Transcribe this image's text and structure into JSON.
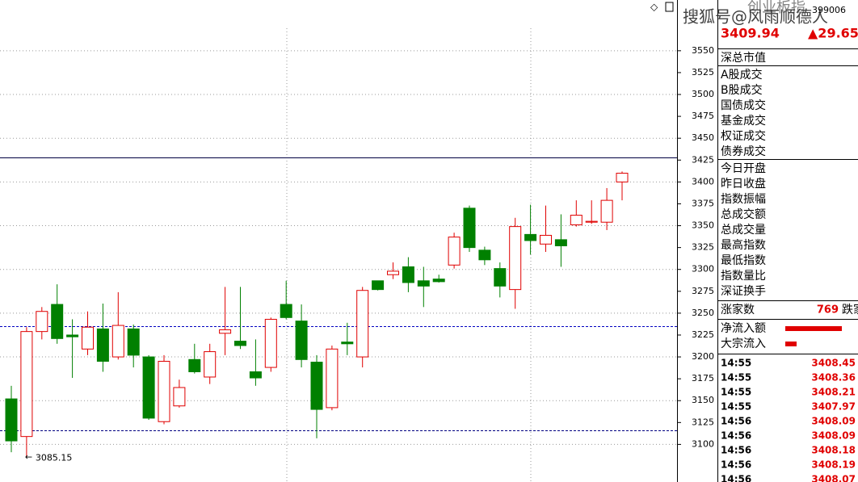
{
  "chart_data": {
    "type": "candlestick",
    "open": [
      3152,
      3109,
      3229,
      3260,
      3225,
      3209,
      3232,
      3200,
      3232,
      3200,
      3126,
      3144,
      3197,
      3177,
      3227,
      3218,
      3183,
      3188,
      3260,
      3241,
      3194,
      3142,
      3217,
      3200,
      3287,
      3294,
      3303,
      3287,
      3289,
      3305,
      3370,
      3322,
      3301,
      3277,
      3340,
      3329,
      3334,
      3351,
      3354,
      3354,
      3400
    ],
    "close": [
      3104,
      3229,
      3252,
      3221,
      3223,
      3234,
      3195,
      3236,
      3202,
      3130,
      3195,
      3165,
      3183,
      3206,
      3231,
      3213,
      3176,
      3243,
      3245,
      3197,
      3140,
      3209,
      3215,
      3276,
      3277,
      3298,
      3285,
      3281,
      3286,
      3337,
      3325,
      3311,
      3281,
      3349,
      3333,
      3339,
      3327,
      3362,
      3355,
      3379,
      3410
    ],
    "high": [
      3167,
      3234,
      3257,
      3283,
      3243,
      3252,
      3261,
      3274,
      3237,
      3202,
      3202,
      3174,
      3215,
      3215,
      3280,
      3280,
      3220,
      3245,
      3287,
      3260,
      3202,
      3213,
      3239,
      3280,
      3287,
      3308,
      3314,
      3303,
      3294,
      3342,
      3373,
      3326,
      3308,
      3359,
      3374,
      3373,
      3363,
      3379,
      3379,
      3393,
      3412
    ],
    "low": [
      3091,
      3085.15,
      3220,
      3215,
      3176,
      3202,
      3183,
      3197,
      3188,
      3128,
      3123,
      3142,
      3181,
      3169,
      3202,
      3209,
      3167,
      3183,
      3243,
      3188,
      3107,
      3139,
      3202,
      3188,
      3276,
      3289,
      3274,
      3257,
      3285,
      3301,
      3320,
      3305,
      3268,
      3255,
      3317,
      3320,
      3303,
      3349,
      3352,
      3345,
      3379
    ],
    "up_color": "#e00000",
    "down_color": "#008000",
    "ylim": [
      3057,
      3608
    ],
    "yticks": [
      3100,
      3125,
      3150,
      3175,
      3200,
      3225,
      3250,
      3275,
      3300,
      3325,
      3350,
      3375,
      3400,
      3425,
      3450,
      3475,
      3500,
      3525,
      3550
    ],
    "grid": true,
    "reference_lines": [
      {
        "value": 3428,
        "color": "#000040",
        "style": "solid"
      },
      {
        "value": 3235,
        "color": "#0000c0",
        "style": "dashed"
      },
      {
        "value": 3116,
        "color": "#000080",
        "style": "dashed"
      }
    ]
  },
  "side_panel": {
    "name": "创业板指",
    "code": "399006",
    "price": "3409.94",
    "change": "▲29.65",
    "watermark": "搜狐号@风雨顺德人",
    "groups": [
      [
        "深总市值"
      ],
      [
        "A股成交",
        "B股成交",
        "国债成交",
        "基金成交",
        "权证成交",
        "债券成交"
      ],
      [
        "今日开盘",
        "昨日收盘",
        "指数振幅",
        "总成交额",
        "总成交量",
        "最高指数",
        "最低指数",
        "指数量比",
        "深证换手"
      ]
    ],
    "advancers_label": "涨家数",
    "advancers": "769",
    "decliners_label": "跌家",
    "flows": [
      {
        "label": "净流入额",
        "value": 70
      },
      {
        "label": "大宗流入",
        "value": 14
      }
    ],
    "ticks": [
      [
        "14:55",
        "3408.45"
      ],
      [
        "14:55",
        "3408.36"
      ],
      [
        "14:55",
        "3408.21"
      ],
      [
        "14:55",
        "3407.97"
      ],
      [
        "14:56",
        "3408.09"
      ],
      [
        "14:56",
        "3408.09"
      ],
      [
        "14:56",
        "3408.18"
      ],
      [
        "14:56",
        "3408.19"
      ],
      [
        "14:56",
        "3408.07"
      ]
    ]
  }
}
